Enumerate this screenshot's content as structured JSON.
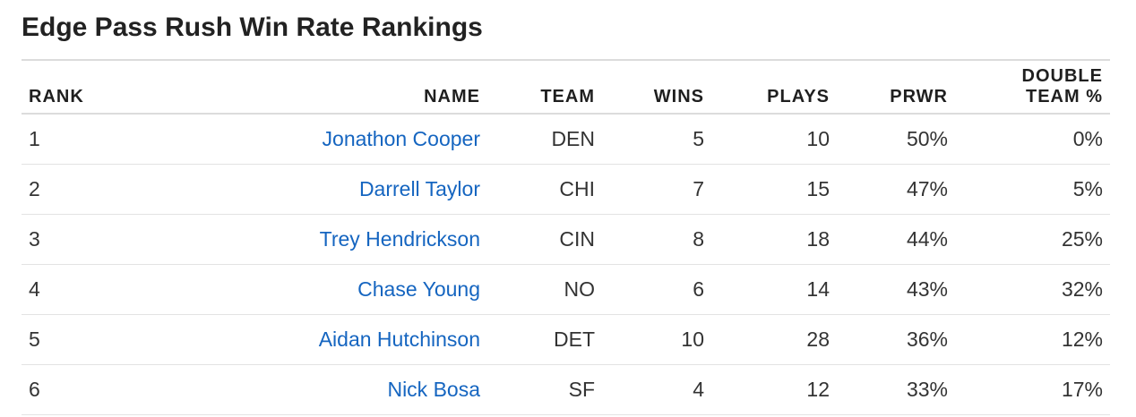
{
  "title": "Edge Pass Rush Win Rate Rankings",
  "columns": {
    "rank": "RANK",
    "name": "NAME",
    "team": "TEAM",
    "wins": "WINS",
    "plays": "PLAYS",
    "prwr": "PRWR",
    "double_team_line1": "DOUBLE",
    "double_team_line2": "TEAM %"
  },
  "rows": [
    {
      "rank": "1",
      "name": "Jonathon Cooper",
      "team": "DEN",
      "wins": "5",
      "plays": "10",
      "prwr": "50%",
      "double_team": "0%"
    },
    {
      "rank": "2",
      "name": "Darrell Taylor",
      "team": "CHI",
      "wins": "7",
      "plays": "15",
      "prwr": "47%",
      "double_team": "5%"
    },
    {
      "rank": "3",
      "name": "Trey Hendrickson",
      "team": "CIN",
      "wins": "8",
      "plays": "18",
      "prwr": "44%",
      "double_team": "25%"
    },
    {
      "rank": "4",
      "name": "Chase Young",
      "team": "NO",
      "wins": "6",
      "plays": "14",
      "prwr": "43%",
      "double_team": "32%"
    },
    {
      "rank": "5",
      "name": "Aidan Hutchinson",
      "team": "DET",
      "wins": "10",
      "plays": "28",
      "prwr": "36%",
      "double_team": "12%"
    },
    {
      "rank": "6",
      "name": "Nick Bosa",
      "team": "SF",
      "wins": "4",
      "plays": "12",
      "prwr": "33%",
      "double_team": "17%"
    }
  ],
  "colors": {
    "link": "#1565c0",
    "text": "#1f1f1f",
    "rule": "#dcdcdc"
  }
}
